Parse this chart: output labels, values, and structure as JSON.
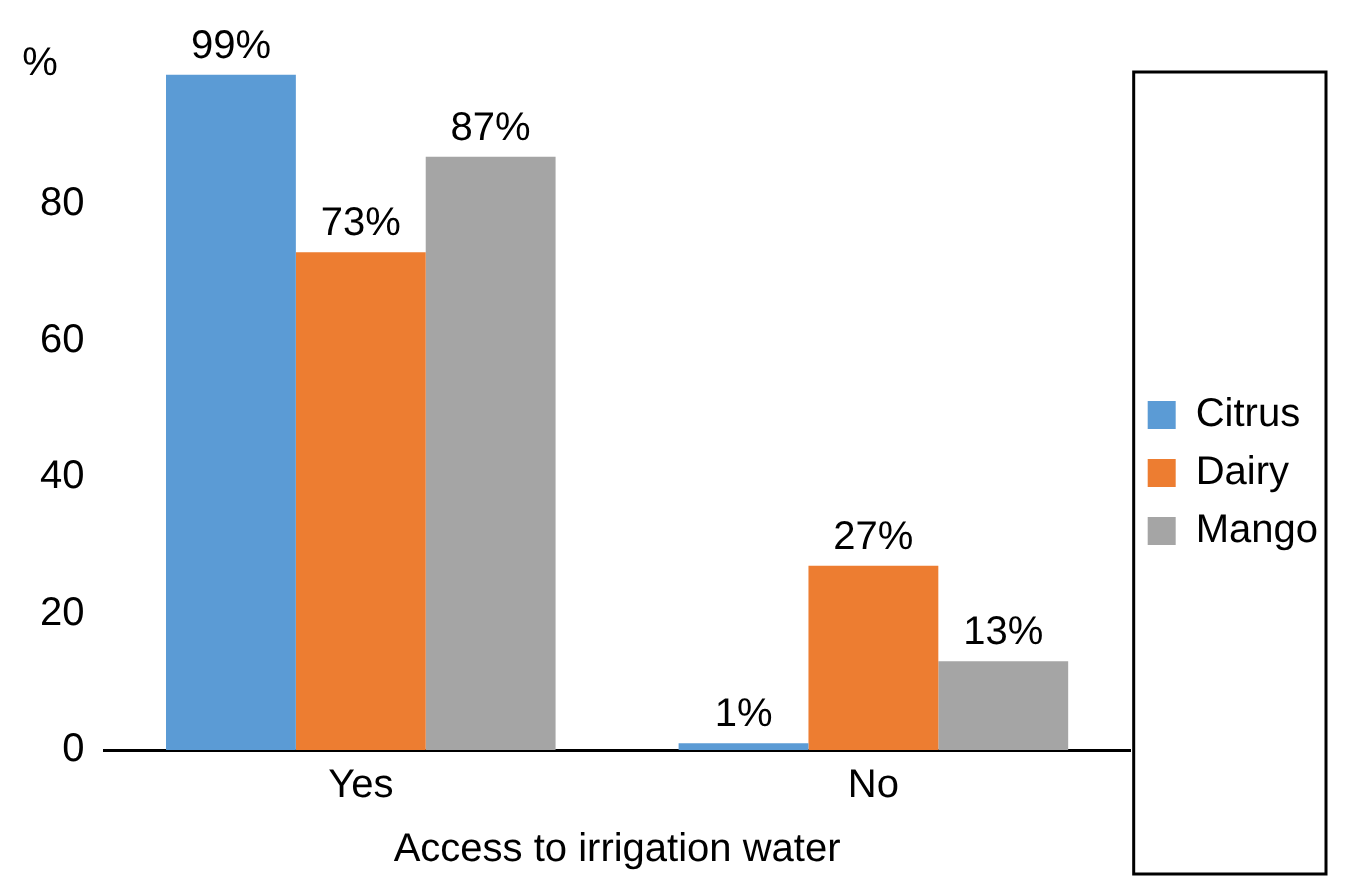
{
  "chart_data": {
    "type": "bar",
    "ylabel": "%",
    "xlabel": "Access to irrigation water",
    "categories": [
      "Yes",
      "No"
    ],
    "series": [
      {
        "name": "Citrus",
        "color": "#5b9bd5",
        "values": [
          99,
          1
        ],
        "value_labels": [
          "99%",
          "1%"
        ]
      },
      {
        "name": "Dairy",
        "color": "#ed7d31",
        "values": [
          73,
          27
        ],
        "value_labels": [
          "73%",
          "27%"
        ]
      },
      {
        "name": "Mango",
        "color": "#a5a5a5",
        "values": [
          87,
          13
        ],
        "value_labels": [
          "87%",
          "13%"
        ]
      }
    ],
    "ylim": [
      0,
      100
    ],
    "yticks": [
      0,
      20,
      40,
      60,
      80
    ],
    "grid": false,
    "legend": "right"
  }
}
